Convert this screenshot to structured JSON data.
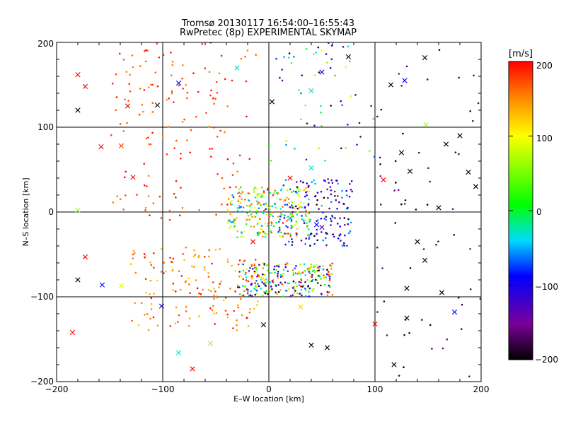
{
  "chart_data": {
    "type": "scatter",
    "title": "Tromsø 20130117 16:54:00–16:55:43",
    "subtitle": "RwPretec (8p) EXPERIMENTAL SKYMAP",
    "xlabel": "E–W location [km]",
    "ylabel": "N–S location [km]",
    "xlim": [
      -200,
      200
    ],
    "ylim": [
      -200,
      200
    ],
    "xticks": [
      "−200",
      "−100",
      "0",
      "100",
      "200"
    ],
    "yticks": [
      "−200",
      "−100",
      "0",
      "100",
      "200"
    ],
    "grid": true,
    "colorbar": {
      "label": "[m/s]",
      "range": [
        -200,
        200
      ],
      "ticks": [
        "200",
        "100",
        "0",
        "−100",
        "−200"
      ],
      "colormap": "rainbow (black → purple → blue → cyan → green → yellow → red)"
    },
    "markers": {
      "small": "dot",
      "large": "x"
    },
    "clusters": [
      {
        "region": "upper-left",
        "x": [
          -150,
          -10
        ],
        "y": [
          -10,
          200
        ],
        "velocity": [
          150,
          200
        ],
        "density": "medium"
      },
      {
        "region": "center",
        "x": [
          -40,
          40
        ],
        "y": [
          -30,
          30
        ],
        "velocity": [
          -100,
          200
        ],
        "density": "high"
      },
      {
        "region": "center-east",
        "x": [
          10,
          80
        ],
        "y": [
          -40,
          40
        ],
        "velocity": [
          -200,
          -50
        ],
        "density": "medium"
      },
      {
        "region": "lower-center",
        "x": [
          -30,
          60
        ],
        "y": [
          -100,
          -60
        ],
        "velocity": [
          -200,
          200
        ],
        "density": "high"
      },
      {
        "region": "lower-left",
        "x": [
          -130,
          -10
        ],
        "y": [
          -140,
          -40
        ],
        "velocity": [
          120,
          200
        ],
        "density": "medium"
      },
      {
        "region": "right",
        "x": [
          100,
          200
        ],
        "y": [
          -200,
          200
        ],
        "velocity": [
          -200,
          -150
        ],
        "density": "low"
      },
      {
        "region": "upper-center",
        "x": [
          0,
          100
        ],
        "y": [
          60,
          200
        ],
        "velocity": [
          -200,
          100
        ],
        "density": "low"
      }
    ],
    "crosses": [
      {
        "x": -180,
        "y": 162,
        "v": 200
      },
      {
        "x": -173,
        "y": 148,
        "v": 200
      },
      {
        "x": -180,
        "y": 120,
        "v": -200
      },
      {
        "x": -133,
        "y": 125,
        "v": 200
      },
      {
        "x": -105,
        "y": 126,
        "v": -200
      },
      {
        "x": -85,
        "y": 152,
        "v": -100
      },
      {
        "x": -139,
        "y": 78,
        "v": 180
      },
      {
        "x": -158,
        "y": 77,
        "v": 200
      },
      {
        "x": -128,
        "y": 41,
        "v": 200
      },
      {
        "x": -180,
        "y": 2,
        "v": 60
      },
      {
        "x": -173,
        "y": -53,
        "v": 200
      },
      {
        "x": -180,
        "y": -80,
        "v": -200
      },
      {
        "x": -157,
        "y": -86,
        "v": -100
      },
      {
        "x": -139,
        "y": -87,
        "v": 90
      },
      {
        "x": -185,
        "y": -142,
        "v": 200
      },
      {
        "x": -101,
        "y": -111,
        "v": -100
      },
      {
        "x": -85,
        "y": -166,
        "v": -40
      },
      {
        "x": -72,
        "y": -185,
        "v": 200
      },
      {
        "x": -55,
        "y": -155,
        "v": 60
      },
      {
        "x": -30,
        "y": 170,
        "v": -40
      },
      {
        "x": 3,
        "y": 130,
        "v": -200
      },
      {
        "x": 40,
        "y": 143,
        "v": -40
      },
      {
        "x": 75,
        "y": 183,
        "v": -200
      },
      {
        "x": 50,
        "y": 165,
        "v": -120
      },
      {
        "x": 115,
        "y": 150,
        "v": -200
      },
      {
        "x": 128,
        "y": 155,
        "v": -100
      },
      {
        "x": 147,
        "y": 182,
        "v": -200
      },
      {
        "x": 148,
        "y": 103,
        "v": 60
      },
      {
        "x": 180,
        "y": 90,
        "v": -200
      },
      {
        "x": 167,
        "y": 80,
        "v": -200
      },
      {
        "x": 125,
        "y": 70,
        "v": -200
      },
      {
        "x": 133,
        "y": 48,
        "v": -200
      },
      {
        "x": 188,
        "y": 47,
        "v": -200
      },
      {
        "x": 195,
        "y": 30,
        "v": -200
      },
      {
        "x": 108,
        "y": 38,
        "v": 200
      },
      {
        "x": 160,
        "y": 5,
        "v": -200
      },
      {
        "x": 140,
        "y": -35,
        "v": -200
      },
      {
        "x": 147,
        "y": -57,
        "v": -200
      },
      {
        "x": 130,
        "y": -90,
        "v": -200
      },
      {
        "x": 163,
        "y": -95,
        "v": -200
      },
      {
        "x": 175,
        "y": -118,
        "v": -100
      },
      {
        "x": 130,
        "y": -125,
        "v": -200
      },
      {
        "x": 118,
        "y": -180,
        "v": -200
      },
      {
        "x": 100,
        "y": -132,
        "v": 200
      },
      {
        "x": 55,
        "y": -160,
        "v": -200
      },
      {
        "x": 40,
        "y": -157,
        "v": -200
      },
      {
        "x": -5,
        "y": -133,
        "v": -200
      },
      {
        "x": 30,
        "y": -112,
        "v": 120
      },
      {
        "x": -15,
        "y": -35,
        "v": 200
      },
      {
        "x": 0,
        "y": 5,
        "v": 60
      },
      {
        "x": 45,
        "y": -15,
        "v": -100
      },
      {
        "x": 50,
        "y": -18,
        "v": -140
      },
      {
        "x": 20,
        "y": 40,
        "v": 200
      },
      {
        "x": 40,
        "y": 52,
        "v": -40
      }
    ]
  }
}
